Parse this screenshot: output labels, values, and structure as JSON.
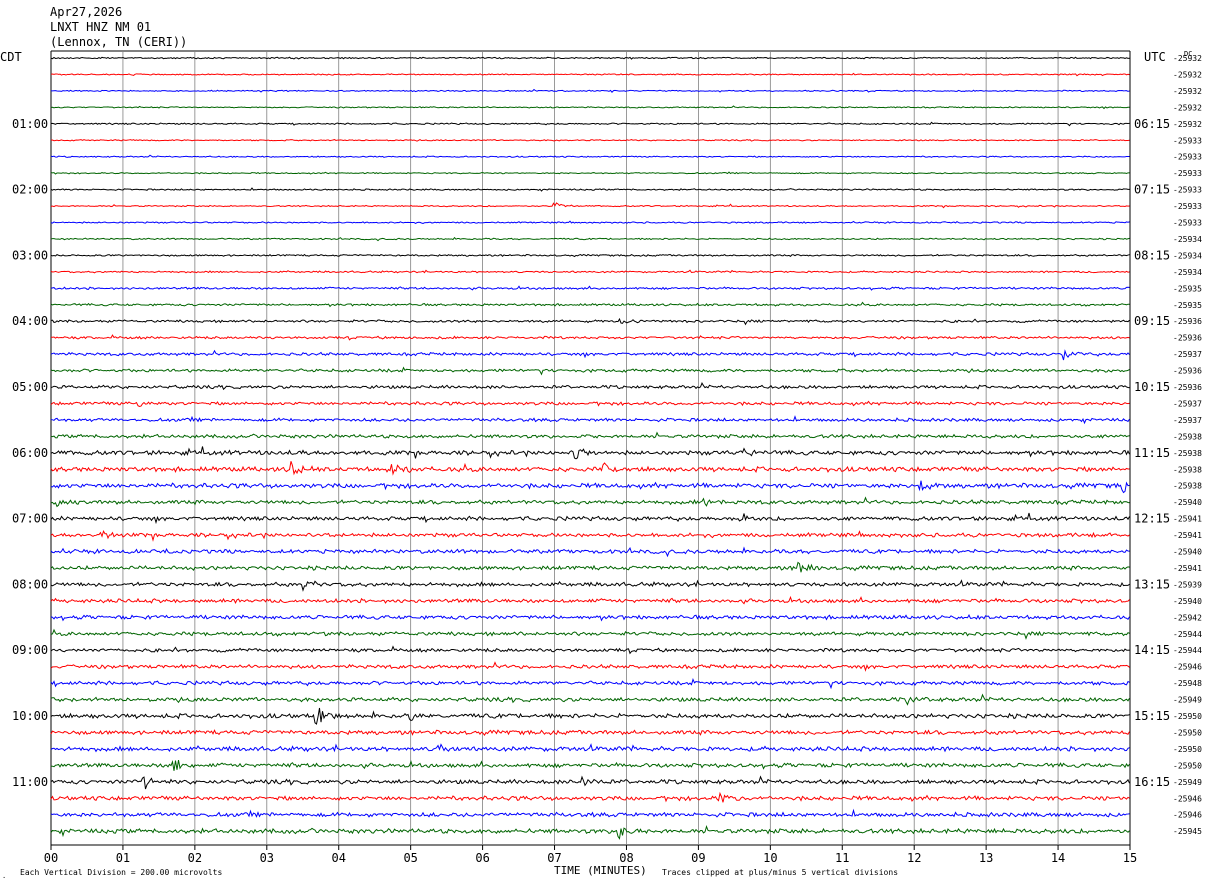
{
  "header": {
    "date": "Apr27,2026",
    "station": "LNXT HNZ NM 01",
    "location": "(Lennox, TN (CERI))"
  },
  "axes": {
    "left_timezone": "CDT",
    "right_timezone": "UTC",
    "dc_label": "DC",
    "xlabel": "TIME (MINUTES)",
    "x_ticks": [
      "00",
      "01",
      "02",
      "03",
      "04",
      "05",
      "06",
      "07",
      "08",
      "09",
      "10",
      "11",
      "12",
      "13",
      "14",
      "15"
    ],
    "left_hour_labels": [
      "01:00",
      "02:00",
      "03:00",
      "04:00",
      "05:00",
      "06:00",
      "07:00",
      "08:00",
      "09:00",
      "10:00",
      "11:00"
    ],
    "right_hour_labels": [
      "06:15",
      "07:15",
      "08:15",
      "09:15",
      "10:15",
      "11:15",
      "12:15",
      "13:15",
      "14:15",
      "15:15",
      "16:15"
    ]
  },
  "footer": {
    "scale_note": "Each Vertical Division =  200.00 microvolts",
    "clip_note": "Traces clipped at plus/minus 5 vertical divisions"
  },
  "colors": {
    "trace_cycle": [
      "#000000",
      "#ff0000",
      "#0000ff",
      "#006400"
    ],
    "grid": "#808080",
    "axis": "#000000"
  },
  "chart_data": {
    "type": "line",
    "title": "",
    "trace_count": 48,
    "minutes_per_trace": 15,
    "xlim": [
      0,
      15
    ],
    "dc_offsets": [
      -25932,
      -25932,
      -25932,
      -25932,
      -25932,
      -25933,
      -25933,
      -25933,
      -25933,
      -25933,
      -25933,
      -25934,
      -25934,
      -25934,
      -25935,
      -25935,
      -25936,
      -25936,
      -25937,
      -25936,
      -25936,
      -25937,
      -25937,
      -25938,
      -25938,
      -25938,
      -25938,
      -25940,
      -25941,
      -25941,
      -25940,
      -25941,
      -25939,
      -25940,
      -25942,
      -25944,
      -25944,
      -25946,
      -25948,
      -25949,
      -25950,
      -25950,
      -25950,
      -25950,
      -25949,
      -25946,
      -25946,
      -25945
    ],
    "trace_activity": [
      0.6,
      0.5,
      0.5,
      0.5,
      0.6,
      0.5,
      0.5,
      0.5,
      0.6,
      0.5,
      0.6,
      0.6,
      0.7,
      0.7,
      0.9,
      0.9,
      1.0,
      1.0,
      1.2,
      1.2,
      1.3,
      1.3,
      1.3,
      1.4,
      1.8,
      1.9,
      1.9,
      1.6,
      1.6,
      1.6,
      1.6,
      1.6,
      1.6,
      1.6,
      1.6,
      1.5,
      1.4,
      1.5,
      1.5,
      1.6,
      1.8,
      1.7,
      1.8,
      1.7,
      1.7,
      1.7,
      1.7,
      1.8
    ],
    "events": [
      {
        "trace": 9,
        "minute": 7.0,
        "amp": 6
      },
      {
        "trace": 18,
        "minute": 14.1,
        "amp": 6
      },
      {
        "trace": 16,
        "minute": 7.9,
        "amp": 5
      },
      {
        "trace": 25,
        "minute": 3.35,
        "amp": 12
      },
      {
        "trace": 25,
        "minute": 4.75,
        "amp": 9
      },
      {
        "trace": 25,
        "minute": 7.7,
        "amp": 7
      },
      {
        "trace": 26,
        "minute": 12.1,
        "amp": 7
      },
      {
        "trace": 26,
        "minute": 14.9,
        "amp": 8
      },
      {
        "trace": 27,
        "minute": 0.1,
        "amp": 10
      },
      {
        "trace": 27,
        "minute": 9.1,
        "amp": 7
      },
      {
        "trace": 28,
        "minute": 9.6,
        "amp": 9
      },
      {
        "trace": 24,
        "minute": 7.3,
        "amp": 7
      },
      {
        "trace": 24,
        "minute": 9.6,
        "amp": 6
      },
      {
        "trace": 21,
        "minute": 1.2,
        "amp": 5
      },
      {
        "trace": 29,
        "minute": 0.7,
        "amp": 6
      },
      {
        "trace": 31,
        "minute": 10.4,
        "amp": 6
      },
      {
        "trace": 32,
        "minute": 3.5,
        "amp": 8
      },
      {
        "trace": 40,
        "minute": 3.7,
        "amp": 14
      },
      {
        "trace": 40,
        "minute": 5.0,
        "amp": 6
      },
      {
        "trace": 42,
        "minute": 5.4,
        "amp": 6
      },
      {
        "trace": 43,
        "minute": 1.7,
        "amp": 8
      },
      {
        "trace": 44,
        "minute": 1.3,
        "amp": 7
      },
      {
        "trace": 44,
        "minute": 7.4,
        "amp": 5
      },
      {
        "trace": 45,
        "minute": 9.3,
        "amp": 6
      },
      {
        "trace": 47,
        "minute": 7.9,
        "amp": 7
      },
      {
        "trace": 39,
        "minute": 11.9,
        "amp": 6
      }
    ]
  }
}
